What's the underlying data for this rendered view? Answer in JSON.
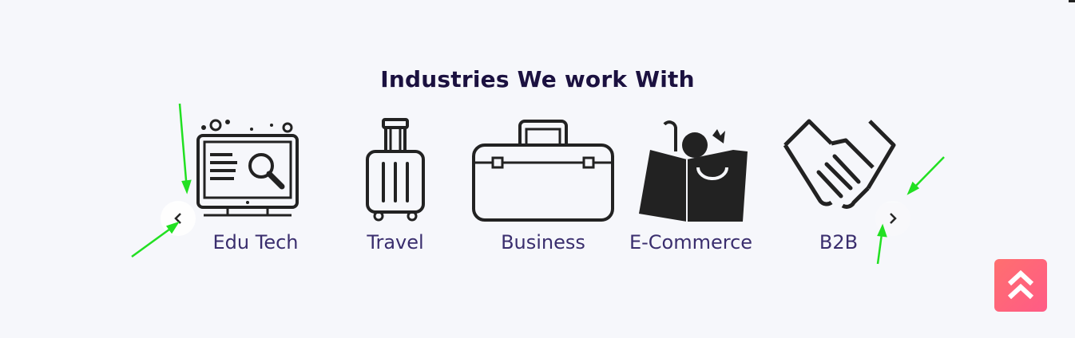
{
  "section": {
    "title": "Industries We work With"
  },
  "industries": [
    {
      "label": "Edu Tech",
      "icon": "monitor-search-icon"
    },
    {
      "label": "Travel",
      "icon": "suitcase-icon"
    },
    {
      "label": "Business",
      "icon": "briefcase-icon"
    },
    {
      "label": "E-Commerce",
      "icon": "shopping-bag-icon"
    },
    {
      "label": "B2B",
      "icon": "handshake-icon"
    }
  ],
  "carousel": {
    "prev_icon": "chevron-left-icon",
    "next_icon": "chevron-right-icon"
  },
  "scroll_top": {
    "icon": "double-chevron-up-icon"
  },
  "colors": {
    "background": "#f6f7fb",
    "title": "#1b1140",
    "label": "#3a2e6e",
    "annotation": "#22e022",
    "scroll_top_start": "#ff6f6f",
    "scroll_top_end": "#ff5b86"
  }
}
